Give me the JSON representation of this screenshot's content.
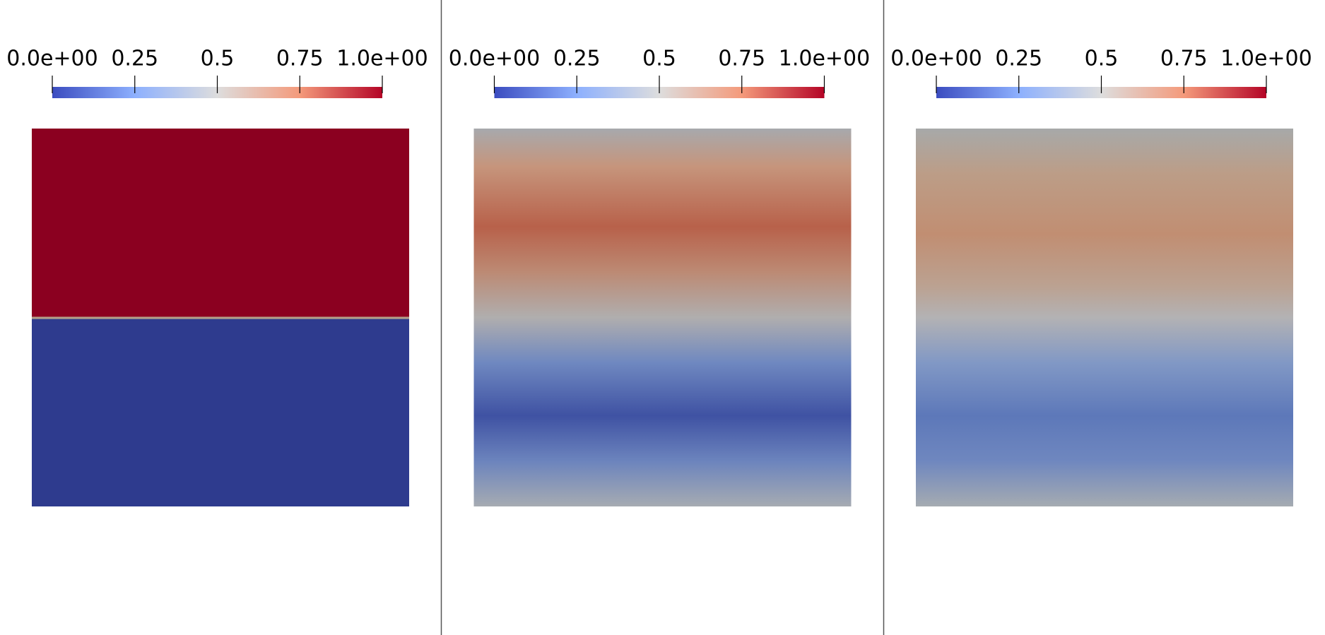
{
  "panels": [
    {
      "colorbar": {
        "range": [
          0,
          1
        ],
        "ticks": [
          {
            "value": 0,
            "label": "0.0e+00"
          },
          0.25,
          0.5,
          0.75,
          {
            "value": 1,
            "label": "1.0e+00"
          }
        ]
      }
    },
    {
      "colorbar": {
        "range": [
          0,
          1
        ],
        "ticks": [
          {
            "value": 0,
            "label": "0.0e+00"
          },
          0.25,
          0.5,
          0.75,
          {
            "value": 1,
            "label": "1.0e+00"
          }
        ]
      }
    },
    {
      "colorbar": {
        "range": [
          0,
          1
        ],
        "ticks": [
          {
            "value": 0,
            "label": "0.0e+00"
          },
          0.25,
          0.5,
          0.75,
          {
            "value": 1,
            "label": "1.0e+00"
          }
        ]
      }
    }
  ]
}
